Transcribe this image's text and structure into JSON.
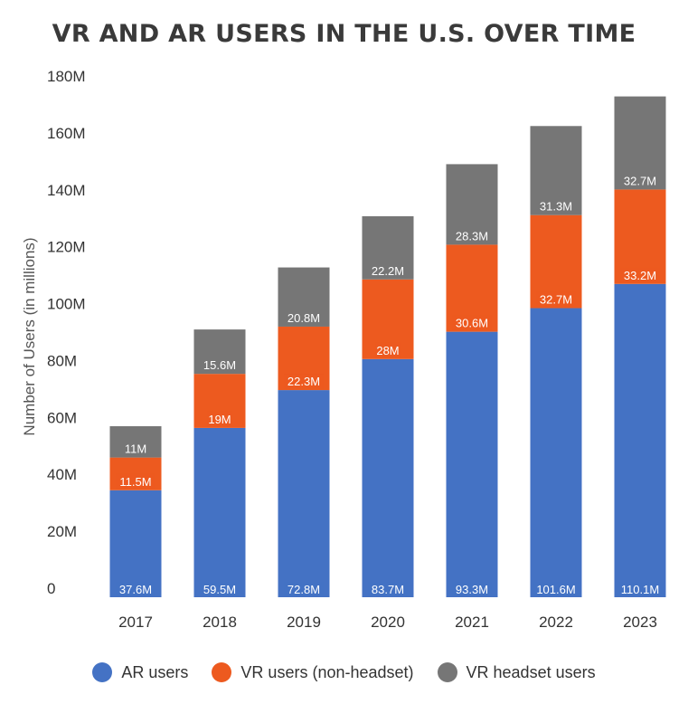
{
  "chart_data": {
    "type": "bar",
    "stacked": true,
    "title": "VR AND AR USERS IN THE U.S. OVER TIME",
    "ylabel": "Number of Users (in millions)",
    "xlabel": "",
    "ylim": [
      0,
      180
    ],
    "yticks": [
      0,
      20,
      40,
      60,
      80,
      100,
      120,
      140,
      160,
      180
    ],
    "ytick_labels": [
      "0",
      "20M",
      "40M",
      "60M",
      "80M",
      "100M",
      "120M",
      "140M",
      "160M",
      "180M"
    ],
    "categories": [
      "2017",
      "2018",
      "2019",
      "2020",
      "2021",
      "2022",
      "2023"
    ],
    "grid": false,
    "legend_position": "bottom",
    "series": [
      {
        "name": "AR users",
        "color": "#4472c4",
        "values": [
          37.6,
          59.5,
          72.8,
          83.7,
          93.3,
          101.6,
          110.1
        ],
        "labels": [
          "37.6M",
          "59.5M",
          "72.8M",
          "83.7M",
          "93.3M",
          "101.6M",
          "110.1M"
        ]
      },
      {
        "name": "VR users (non-headset)",
        "color": "#ed5a1f",
        "values": [
          11.5,
          19,
          22.3,
          28,
          30.6,
          32.7,
          33.2
        ],
        "labels": [
          "11.5M",
          "19M",
          "22.3M",
          "28M",
          "30.6M",
          "32.7M",
          "33.2M"
        ]
      },
      {
        "name": "VR headset users",
        "color": "#767676",
        "values": [
          11,
          15.6,
          20.8,
          22.2,
          28.3,
          31.3,
          32.7
        ],
        "labels": [
          "11M",
          "15.6M",
          "20.8M",
          "22.2M",
          "28.3M",
          "31.3M",
          "32.7M"
        ]
      }
    ]
  }
}
